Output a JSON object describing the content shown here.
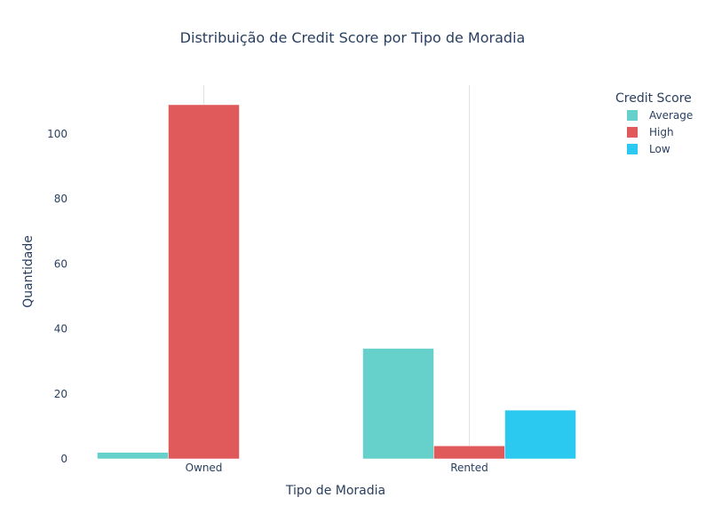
{
  "chart_data": {
    "type": "bar",
    "title": "Distribuição de Credit Score por Tipo de Moradia",
    "xlabel": "Tipo de Moradia",
    "ylabel": "Quantidade",
    "categories": [
      "Owned",
      "Rented"
    ],
    "series": [
      {
        "name": "Average",
        "values": [
          2,
          34
        ],
        "color": "#66d0ca"
      },
      {
        "name": "High",
        "values": [
          109,
          4
        ],
        "color": "#e05a5c"
      },
      {
        "name": "Low",
        "values": [
          0,
          15
        ],
        "color": "#2bc9ef"
      }
    ],
    "ylim": [
      0,
      115
    ],
    "yticks": [
      0,
      20,
      40,
      60,
      80,
      100
    ],
    "legend_title": "Credit Score",
    "legend_position": "top-right",
    "grid": "vertical"
  }
}
